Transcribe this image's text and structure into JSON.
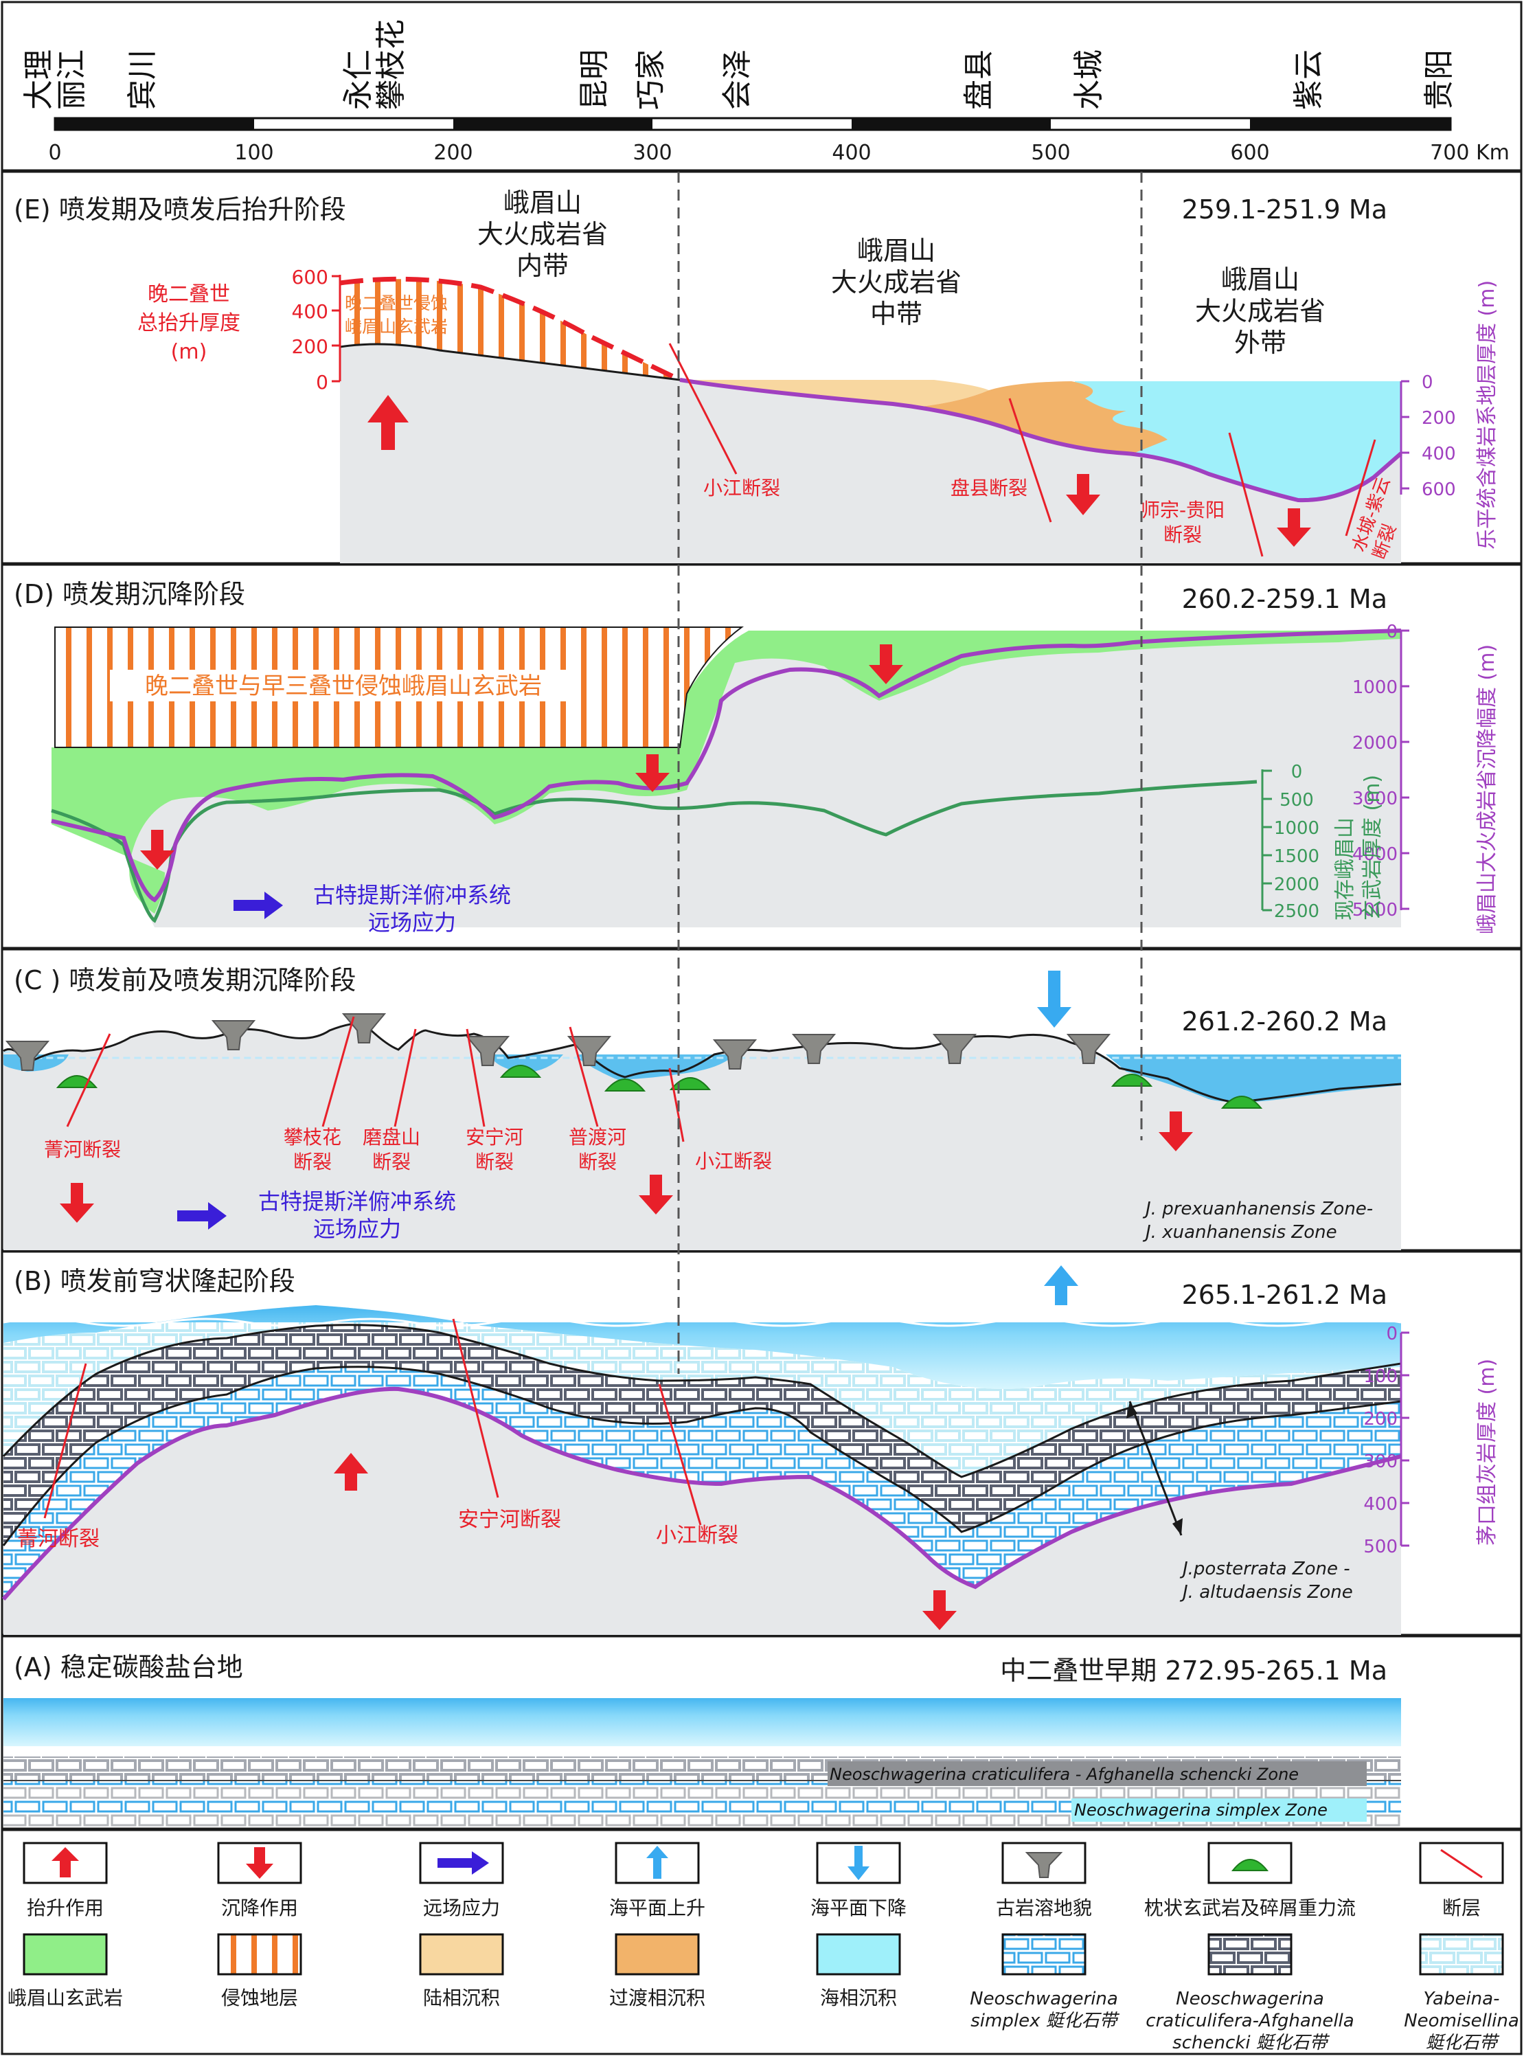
{
  "scale_bar": {
    "places": [
      "大理\n丽江",
      "宾川",
      "永仁\n攀枝花",
      "昆明",
      "巧家",
      "会泽",
      "盘县",
      "水城",
      "紫云",
      "贵阳"
    ],
    "ticks": [
      "0",
      "100",
      "200",
      "300",
      "400",
      "500",
      "600",
      "700 Km"
    ]
  },
  "panel_e": {
    "title": "(E) 喷发期及喷发后抬升阶段",
    "age": "259.1-251.9 Ma",
    "zone_inner": "峨眉山\n大火成岩省\n内带",
    "zone_middle": "峨眉山\n大火成岩省\n中带",
    "zone_outer": "峨眉山\n大火成岩省\n外带",
    "uplift_label": "晚二叠世\n总抬升厚度\n(m)",
    "erosion_label": "晚二叠世侵蚀\n峨眉山玄武岩",
    "left_axis_ticks": [
      "600",
      "400",
      "200",
      "0"
    ],
    "right_axis_ticks": [
      "0",
      "200",
      "400",
      "600"
    ],
    "right_axis_title": "乐平统含煤岩系地层厚度 (m)",
    "faults": [
      "小江断裂",
      "盘县断裂",
      "师宗-贵阳\n断裂",
      "水城-紫云\n断裂"
    ]
  },
  "panel_d": {
    "title": "(D) 喷发期沉降阶段",
    "age": "260.2-259.1 Ma",
    "erosion_label": "晚二叠世与早三叠世侵蚀峨眉山玄武岩",
    "stress_label": "古特提斯洋俯冲系统\n远场应力",
    "right_axis_ticks": [
      "0",
      "1000",
      "2000",
      "3000",
      "4000",
      "5000"
    ],
    "right_axis_title": "峨眉山大火成岩省沉降幅度 (m)",
    "basalt_axis_ticks": [
      "0",
      "500",
      "1000",
      "1500",
      "2000",
      "2500"
    ],
    "basalt_axis_title": "现存峨眉山\n玄武岩厚度 (m)"
  },
  "panel_c": {
    "title": "(C ) 喷发前及喷发期沉降阶段",
    "age": "261.2-260.2 Ma",
    "faults": [
      "菁河断裂",
      "攀枝花\n断裂",
      "磨盘山\n断裂",
      "安宁河\n断裂",
      "普渡河\n断裂",
      "小江断裂"
    ],
    "stress_label": "古特提斯洋俯冲系统\n远场应力",
    "zone_label": "J. prexuanhanensis Zone-\nJ. xuanhanensis Zone"
  },
  "panel_b": {
    "title": "(B) 喷发前穹状隆起阶段",
    "age": "265.1-261.2 Ma",
    "right_axis_ticks": [
      "0",
      "100",
      "200",
      "300",
      "400",
      "500"
    ],
    "right_axis_title": "茅口组灰岩厚度 (m)",
    "faults": [
      "菁河断裂",
      "安宁河断裂",
      "小江断裂"
    ],
    "zone_label": "J.posterrata Zone -\nJ. altudaensis Zone"
  },
  "panel_a": {
    "title": "(A) 稳定碳酸盐台地",
    "age": "中二叠世早期 272.95-265.1 Ma",
    "zone_upper": "Neoschwagerina craticulifera - Afghanella schencki Zone",
    "zone_lower": "Neoschwagerina simplex Zone"
  },
  "legend": {
    "row1": [
      "抬升作用",
      "沉降作用",
      "远场应力",
      "海平面上升",
      "海平面下降",
      "古岩溶地貌",
      "枕状玄武岩及碎屑重力流",
      "断层"
    ],
    "row2": [
      "峨眉山玄武岩",
      "侵蚀地层",
      "陆相沉积",
      "过渡相沉积",
      "海相沉积",
      "Neoschwagerina\nsimplex 蜓化石带",
      "Neoschwagerina\ncraticulifera-Afghanella\nschencki 蜓化石带",
      "Yabeina-\nNeomisellina\n蜓化石带"
    ]
  },
  "colors": {
    "red": "#e8202a",
    "purple": "#a040c0",
    "green": "#90ee88",
    "basalt_line": "#3a9a5a",
    "blue_arrow": "#3a1ed8",
    "sea": "#9ff0fa",
    "terrestrial": "#f8d7a0",
    "transitional": "#f2b36a",
    "erosion": "#f07a2a",
    "gray_fill": "#e6e8ea"
  }
}
